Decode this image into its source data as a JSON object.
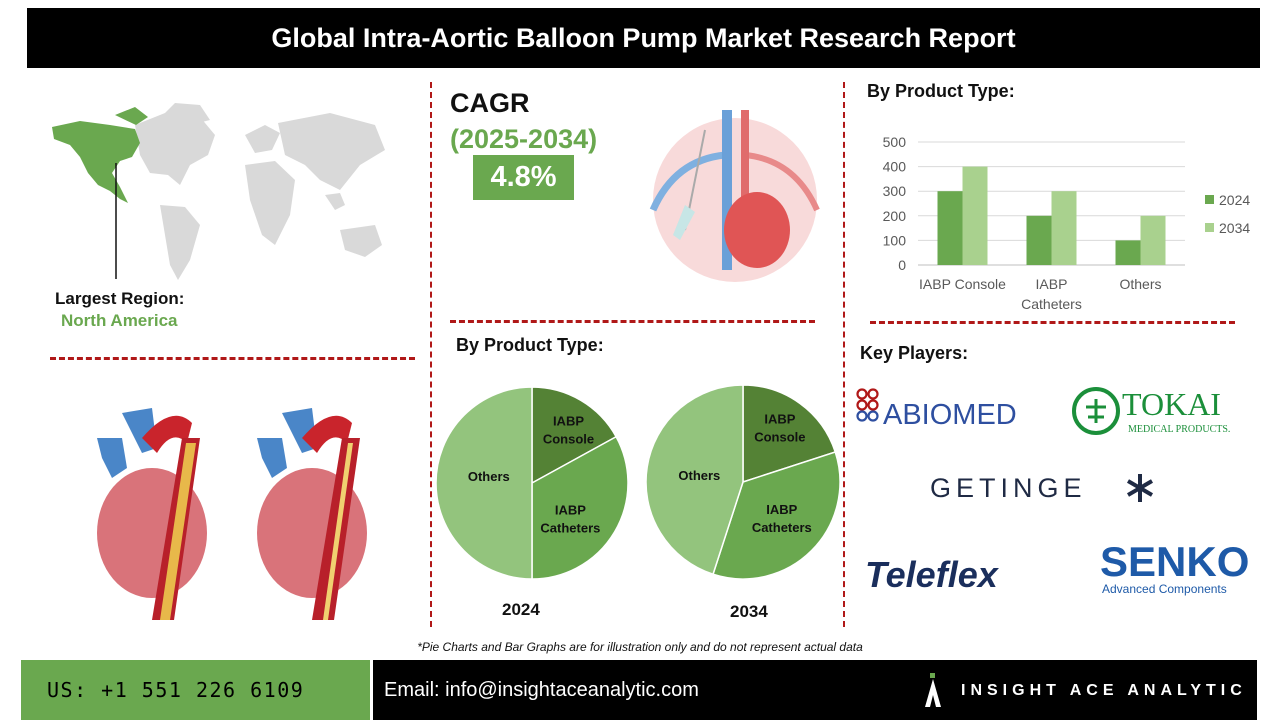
{
  "header": {
    "title": "Global Intra-Aortic Balloon Pump Market Research Report"
  },
  "region": {
    "label": "Largest Region:",
    "value": "North America"
  },
  "cagr": {
    "title": "CAGR",
    "period": "(2025-2034)",
    "value": "4.8%"
  },
  "colors": {
    "green": "#6aa84f",
    "dark_green": "#548235",
    "mid_green": "#6aa84f",
    "light_green": "#93c47d",
    "pale_green": "#a9d18e",
    "divider": "#b01818"
  },
  "pie_section": {
    "title": "By Product Type:"
  },
  "bar_section": {
    "title": "By Product Type:"
  },
  "key_players": {
    "title": "Key Players:",
    "logos": [
      {
        "name": "ABIOMED"
      },
      {
        "name": "TOKAI",
        "sub": "MEDICAL PRODUCTS."
      },
      {
        "name": "GETINGE"
      },
      {
        "name": "Teleflex"
      },
      {
        "name": "SENKO",
        "sub": "Advanced Components"
      }
    ]
  },
  "chart_data": [
    {
      "type": "pie",
      "title": "2024",
      "slices": [
        {
          "label": "IABP Console",
          "value": 17,
          "color": "#548235"
        },
        {
          "label": "IABP Catheters",
          "value": 33,
          "color": "#6aa84f"
        },
        {
          "label": "Others",
          "value": 50,
          "color": "#93c47d"
        }
      ]
    },
    {
      "type": "pie",
      "title": "2034",
      "slices": [
        {
          "label": "IABP Console",
          "value": 20,
          "color": "#548235"
        },
        {
          "label": "IABP Catheters",
          "value": 35,
          "color": "#6aa84f"
        },
        {
          "label": "Others",
          "value": 45,
          "color": "#93c47d"
        }
      ]
    },
    {
      "type": "bar",
      "categories": [
        "IABP Console",
        "IABP Catheters",
        "Others"
      ],
      "series": [
        {
          "name": "2024",
          "values": [
            300,
            200,
            100
          ],
          "color": "#6aa84f"
        },
        {
          "name": "2034",
          "values": [
            400,
            300,
            200
          ],
          "color": "#a9d18e"
        }
      ],
      "yticks": [
        0,
        100,
        200,
        300,
        400,
        500
      ],
      "ylim": [
        0,
        500
      ],
      "grid": true,
      "legend": "right"
    }
  ],
  "footnote": "*Pie Charts and Bar Graphs are for illustration only and do not represent actual data",
  "footer": {
    "phone": "US: +1 551 226 6109",
    "email": "Email: info@insightaceanalytic.com",
    "brand": "INSIGHT ACE ANALYTIC"
  }
}
